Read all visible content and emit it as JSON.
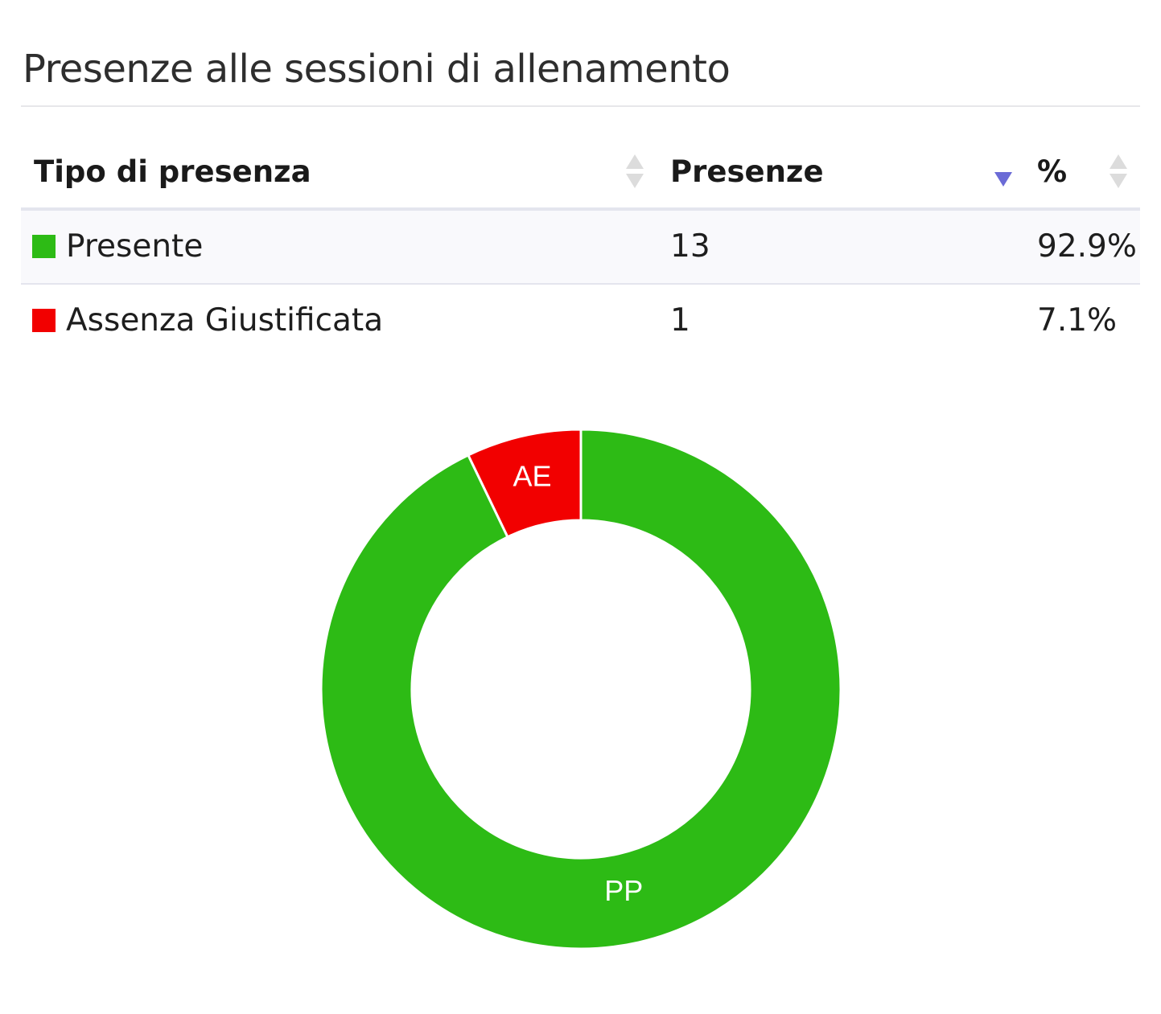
{
  "panel": {
    "title": "Presenze alle sessioni di allenamento"
  },
  "table": {
    "columns": [
      "Tipo di presenza",
      "Presenze",
      "%"
    ],
    "sorted_column": "Presenze",
    "sort_direction": "descending",
    "rows": [
      {
        "label": "Presente",
        "count": "13",
        "percent": "92.9%",
        "color": "#2dbb15"
      },
      {
        "label": "Assenza Giustificata",
        "count": "1",
        "percent": "7.1%",
        "color": "#f20000"
      }
    ]
  },
  "chart_data": {
    "type": "pie",
    "donut": true,
    "categories": [
      "AE",
      "PP"
    ],
    "values": [
      1,
      13
    ],
    "colors": [
      "#f20000",
      "#2dbb15"
    ],
    "slice_labels": [
      "AE",
      "PP"
    ],
    "title": ""
  }
}
